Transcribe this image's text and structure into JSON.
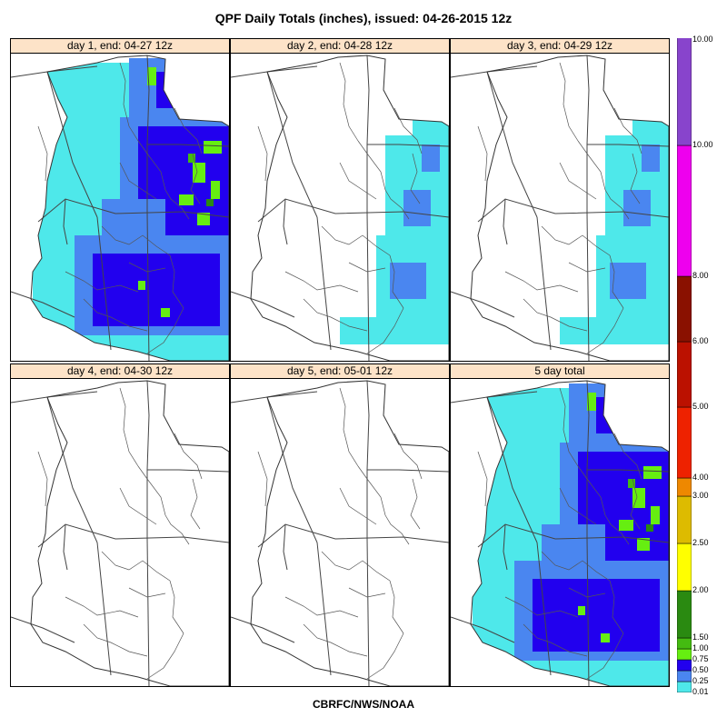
{
  "title": "QPF Daily Totals (inches),  issued: 04-26-2015 12z",
  "footer": "CBRFC/NWS/NOAA",
  "panels": [
    {
      "label": "day 1, end: 04-27 12z",
      "intensity": "heavy"
    },
    {
      "label": "day 2, end: 04-28 12z",
      "intensity": "light-east"
    },
    {
      "label": "day 3, end: 04-29 12z",
      "intensity": "light-east"
    },
    {
      "label": "day 4, end: 04-30 12z",
      "intensity": "none"
    },
    {
      "label": "day 5, end: 05-01 12z",
      "intensity": "none"
    },
    {
      "label": "5 day total",
      "intensity": "heavy"
    }
  ],
  "legend": {
    "bins": [
      {
        "low": "0.01",
        "color": "#4ee8ea"
      },
      {
        "low": "0.25",
        "color": "#4a86f0"
      },
      {
        "low": "0.50",
        "color": "#2200ee"
      },
      {
        "low": "0.75",
        "color": "#66ee11"
      },
      {
        "low": "1.00",
        "color": "#44bb11"
      },
      {
        "low": "1.50",
        "color": "#2a8a11"
      },
      {
        "low": "2.00",
        "color": "#ffff00"
      },
      {
        "low": "2.50",
        "color": "#ddbb00"
      },
      {
        "low": "3.00",
        "color": "#ee8800"
      },
      {
        "low": "4.00",
        "color": "#ee2200"
      },
      {
        "low": "5.00",
        "color": "#bb1100"
      },
      {
        "low": "6.00",
        "color": "#8a1100"
      },
      {
        "low": "8.00",
        "color": "#ee00ee"
      },
      {
        "low": "10.00",
        "color": "#8844cc"
      }
    ],
    "top_label": "10.00"
  }
}
